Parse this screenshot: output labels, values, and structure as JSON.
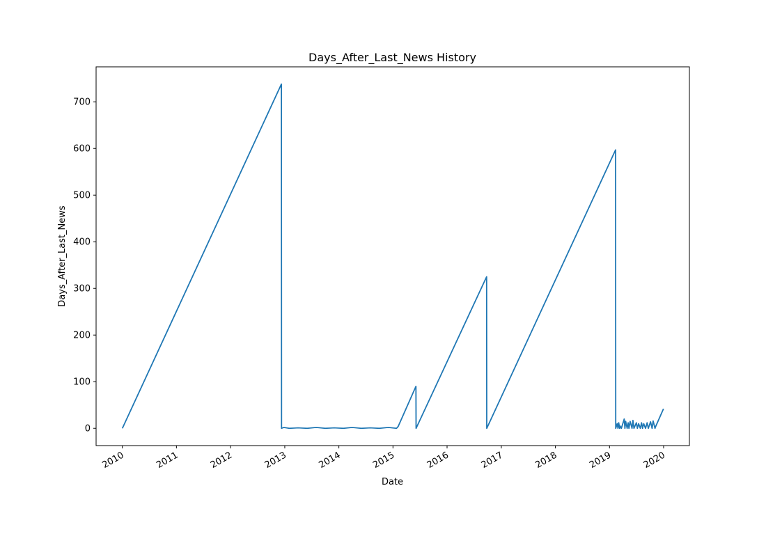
{
  "chart_data": {
    "type": "line",
    "title": "Days_After_Last_News History",
    "xlabel": "Date",
    "ylabel": "Days_After_Last_News",
    "x_ticks": [
      "2010",
      "2011",
      "2012",
      "2013",
      "2014",
      "2015",
      "2016",
      "2017",
      "2018",
      "2019",
      "2020"
    ],
    "y_ticks": [
      "0",
      "100",
      "200",
      "300",
      "400",
      "500",
      "600",
      "700"
    ],
    "xlim": [
      "2009-07-08",
      "2020-06-23"
    ],
    "ylim": [
      -37,
      775
    ],
    "grid": false,
    "line_color": "#1f77b4",
    "series": [
      {
        "x": [
          "2010-01-01",
          "2012-12-09",
          "2012-12-10",
          "2012-12-25",
          "2013-02-01",
          "2013-04-01",
          "2013-06-01",
          "2013-08-01",
          "2013-10-01",
          "2013-12-01",
          "2014-02-01",
          "2014-04-01",
          "2014-06-01",
          "2014-08-01",
          "2014-10-01",
          "2014-12-01",
          "2015-01-25",
          "2015-02-05",
          "2015-06-05",
          "2015-06-06",
          "2016-09-24",
          "2016-09-25",
          "2019-02-11",
          "2019-02-12",
          "2019-02-22",
          "2019-02-27",
          "2019-03-04",
          "2019-03-10",
          "2019-03-14",
          "2019-03-22",
          "2019-04-10",
          "2019-04-15",
          "2019-04-20",
          "2019-04-30",
          "2019-05-07",
          "2019-05-12",
          "2019-05-20",
          "2019-06-02",
          "2019-06-08",
          "2019-06-15",
          "2019-07-01",
          "2019-07-08",
          "2019-07-16",
          "2019-07-28",
          "2019-08-05",
          "2019-08-12",
          "2019-08-20",
          "2019-09-01",
          "2019-09-12",
          "2019-09-20",
          "2019-10-05",
          "2019-10-15",
          "2019-10-22",
          "2019-11-04",
          "2019-11-06",
          "2019-12-31"
        ],
        "y": [
          0,
          738,
          0,
          2,
          0,
          1,
          0,
          2,
          0,
          1,
          0,
          2,
          0,
          1,
          0,
          2,
          0,
          4,
          90,
          0,
          325,
          0,
          597,
          0,
          10,
          0,
          12,
          0,
          5,
          0,
          20,
          0,
          15,
          0,
          12,
          0,
          15,
          0,
          17,
          0,
          12,
          0,
          10,
          0,
          12,
          0,
          10,
          0,
          12,
          0,
          14,
          0,
          16,
          0,
          2,
          42
        ]
      }
    ]
  }
}
